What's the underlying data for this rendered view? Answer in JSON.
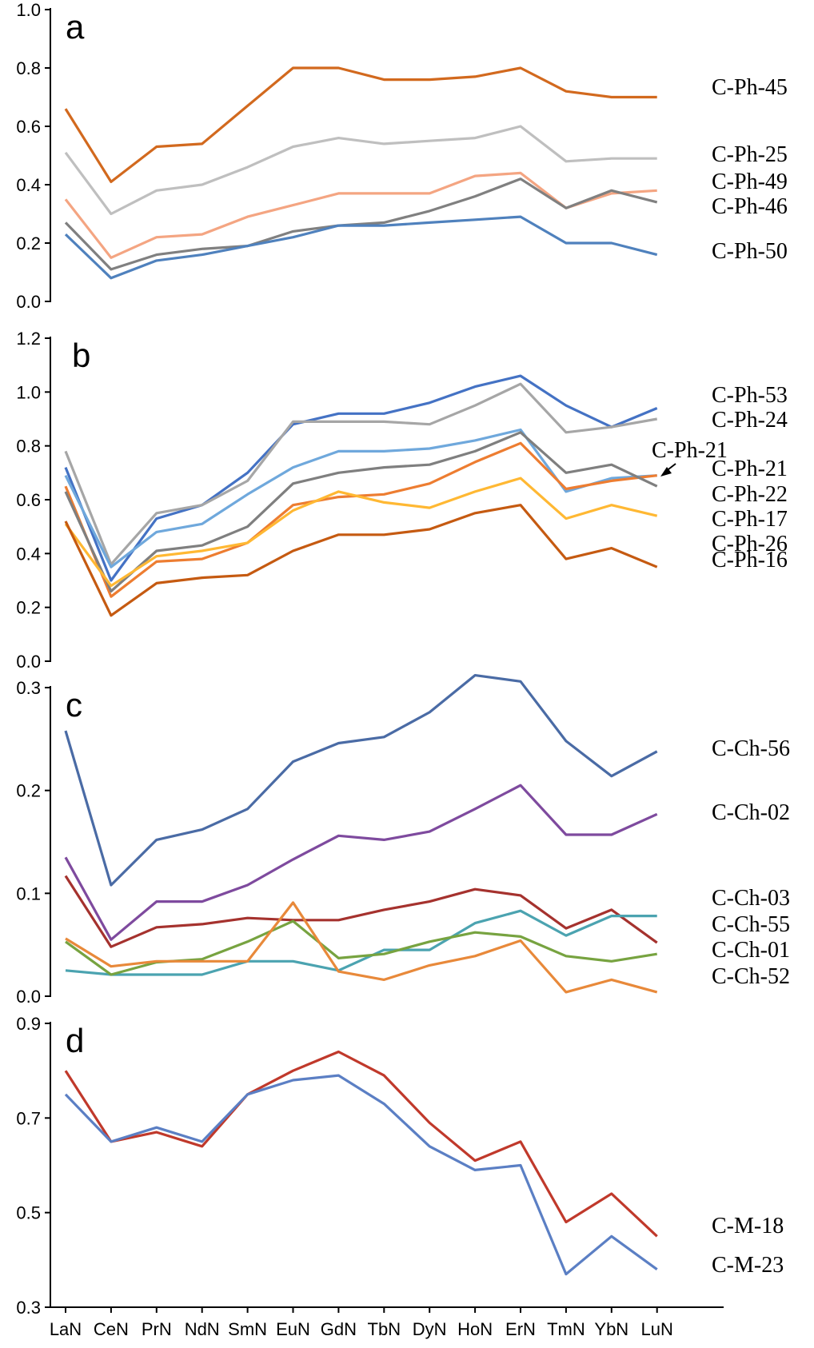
{
  "chart_data": [
    {
      "type": "line",
      "panel_label": "a",
      "categories": [
        "LaN",
        "CeN",
        "PrN",
        "NdN",
        "SmN",
        "EuN",
        "GdN",
        "TbN",
        "DyN",
        "HoN",
        "ErN",
        "TmN",
        "YbN",
        "LuN"
      ],
      "ylim": [
        0.0,
        1.0
      ],
      "yticks": [
        0.0,
        0.2,
        0.4,
        0.6,
        0.8,
        1.0
      ],
      "ytick_labels": [
        "0.0",
        "0.2",
        "0.4",
        "0.6",
        "0.8",
        "1.0"
      ],
      "series": [
        {
          "name": "C-Ph-45",
          "color": "#D2691E",
          "values": [
            0.66,
            0.41,
            0.53,
            0.54,
            0.67,
            0.8,
            0.8,
            0.76,
            0.76,
            0.77,
            0.8,
            0.72,
            0.7,
            0.7
          ]
        },
        {
          "name": "C-Ph-25",
          "color": "#BFBFBF",
          "values": [
            0.51,
            0.3,
            0.38,
            0.4,
            0.46,
            0.53,
            0.56,
            0.54,
            0.55,
            0.56,
            0.6,
            0.48,
            0.49,
            0.49
          ]
        },
        {
          "name": "C-Ph-49",
          "color": "#F4A582",
          "values": [
            0.35,
            0.15,
            0.22,
            0.23,
            0.29,
            0.33,
            0.37,
            0.37,
            0.37,
            0.43,
            0.44,
            0.32,
            0.37,
            0.38
          ]
        },
        {
          "name": "C-Ph-46",
          "color": "#808080",
          "values": [
            0.27,
            0.11,
            0.16,
            0.18,
            0.19,
            0.24,
            0.26,
            0.27,
            0.31,
            0.36,
            0.42,
            0.32,
            0.38,
            0.34
          ]
        },
        {
          "name": "C-Ph-50",
          "color": "#4F81BD",
          "values": [
            0.23,
            0.08,
            0.14,
            0.16,
            0.19,
            0.22,
            0.26,
            0.26,
            0.27,
            0.28,
            0.29,
            0.2,
            0.2,
            0.16
          ]
        }
      ]
    },
    {
      "type": "line",
      "panel_label": "b",
      "categories": [
        "LaN",
        "CeN",
        "PrN",
        "NdN",
        "SmN",
        "EuN",
        "GdN",
        "TbN",
        "DyN",
        "HoN",
        "ErN",
        "TmN",
        "YbN",
        "LuN"
      ],
      "ylim": [
        0.0,
        1.2
      ],
      "yticks": [
        0.0,
        0.2,
        0.4,
        0.6,
        0.8,
        1.0,
        1.2
      ],
      "ytick_labels": [
        "0.0",
        "0.2",
        "0.4",
        "0.6",
        "0.8",
        "1.0",
        "1.2"
      ],
      "annotation": "C-Ph-21",
      "series": [
        {
          "name": "C-Ph-53",
          "color": "#4472C4",
          "values": [
            0.72,
            0.3,
            0.53,
            0.58,
            0.7,
            0.88,
            0.92,
            0.92,
            0.96,
            1.02,
            1.06,
            0.95,
            0.87,
            0.94
          ]
        },
        {
          "name": "C-Ph-24",
          "color": "#A6A6A6",
          "values": [
            0.78,
            0.36,
            0.55,
            0.58,
            0.67,
            0.89,
            0.89,
            0.89,
            0.88,
            0.95,
            1.03,
            0.85,
            0.87,
            0.9
          ]
        },
        {
          "name": "C-Ph-21",
          "color": "#6FA8DC",
          "values": [
            0.69,
            0.35,
            0.48,
            0.51,
            0.62,
            0.72,
            0.78,
            0.78,
            0.79,
            0.82,
            0.86,
            0.63,
            0.68,
            0.69
          ]
        },
        {
          "name": "C-Ph-22",
          "color": "#ED7D31",
          "values": [
            0.65,
            0.24,
            0.37,
            0.38,
            0.44,
            0.58,
            0.61,
            0.62,
            0.66,
            0.74,
            0.81,
            0.64,
            0.67,
            0.69
          ]
        },
        {
          "name": "C-Ph-17",
          "color": "#7F7F7F",
          "values": [
            0.63,
            0.26,
            0.41,
            0.43,
            0.5,
            0.66,
            0.7,
            0.72,
            0.73,
            0.78,
            0.85,
            0.7,
            0.73,
            0.65
          ]
        },
        {
          "name": "C-Ph-26",
          "color": "#FFB833",
          "values": [
            0.51,
            0.28,
            0.39,
            0.41,
            0.44,
            0.56,
            0.63,
            0.59,
            0.57,
            0.63,
            0.68,
            0.53,
            0.58,
            0.54
          ]
        },
        {
          "name": "C-Ph-16",
          "color": "#C55A11",
          "values": [
            0.52,
            0.17,
            0.29,
            0.31,
            0.32,
            0.41,
            0.47,
            0.47,
            0.49,
            0.55,
            0.58,
            0.38,
            0.42,
            0.35
          ]
        }
      ]
    },
    {
      "type": "line",
      "panel_label": "c",
      "categories": [
        "LaN",
        "CeN",
        "PrN",
        "NdN",
        "SmN",
        "EuN",
        "GdN",
        "TbN",
        "DyN",
        "HoN",
        "ErN",
        "TmN",
        "YbN",
        "LuN"
      ],
      "ylim": [
        0.0,
        0.3
      ],
      "yticks": [
        0.0,
        0.1,
        0.2,
        0.3
      ],
      "ytick_labels": [
        "0.0",
        "0.1",
        "0.2",
        "0.3"
      ],
      "series": [
        {
          "name": "C-Ch-56",
          "color": "#4A6BA5",
          "values": [
            0.258,
            0.108,
            0.152,
            0.162,
            0.182,
            0.228,
            0.246,
            0.252,
            0.276,
            0.312,
            0.306,
            0.248,
            0.214,
            0.238
          ]
        },
        {
          "name": "C-Ch-02",
          "color": "#7E4A9E",
          "values": [
            0.135,
            0.055,
            0.092,
            0.092,
            0.108,
            0.133,
            0.156,
            0.152,
            0.16,
            0.182,
            0.205,
            0.157,
            0.157,
            0.177
          ]
        },
        {
          "name": "C-Ch-03",
          "color": "#A5322E",
          "values": [
            0.117,
            0.048,
            0.067,
            0.07,
            0.076,
            0.074,
            0.074,
            0.084,
            0.092,
            0.104,
            0.098,
            0.066,
            0.084,
            0.052
          ]
        },
        {
          "name": "C-Ch-55",
          "color": "#4BA3B0",
          "values": [
            0.025,
            0.021,
            0.021,
            0.021,
            0.034,
            0.034,
            0.025,
            0.045,
            0.045,
            0.071,
            0.083,
            0.059,
            0.078,
            0.078
          ]
        },
        {
          "name": "C-Ch-01",
          "color": "#77A340",
          "values": [
            0.053,
            0.021,
            0.033,
            0.036,
            0.053,
            0.073,
            0.037,
            0.041,
            0.053,
            0.062,
            0.058,
            0.039,
            0.034,
            0.041
          ]
        },
        {
          "name": "C-Ch-52",
          "color": "#E8893A",
          "values": [
            0.056,
            0.029,
            0.034,
            0.034,
            0.034,
            0.091,
            0.024,
            0.016,
            0.03,
            0.039,
            0.054,
            0.004,
            0.016,
            0.004
          ]
        }
      ]
    },
    {
      "type": "line",
      "panel_label": "d",
      "categories": [
        "LaN",
        "CeN",
        "PrN",
        "NdN",
        "SmN",
        "EuN",
        "GdN",
        "TbN",
        "DyN",
        "HoN",
        "ErN",
        "TmN",
        "YbN",
        "LuN"
      ],
      "ylim": [
        0.3,
        0.9
      ],
      "yticks": [
        0.3,
        0.5,
        0.7,
        0.9
      ],
      "ytick_labels": [
        "0.3",
        "0.5",
        "0.7",
        "0.9"
      ],
      "series": [
        {
          "name": "C-M-18",
          "color": "#C0392B",
          "values": [
            0.8,
            0.65,
            0.67,
            0.64,
            0.75,
            0.8,
            0.84,
            0.79,
            0.69,
            0.61,
            0.65,
            0.48,
            0.54,
            0.45
          ]
        },
        {
          "name": "C-M-23",
          "color": "#5B7FC4",
          "values": [
            0.75,
            0.65,
            0.68,
            0.65,
            0.75,
            0.78,
            0.79,
            0.73,
            0.64,
            0.59,
            0.6,
            0.37,
            0.45,
            0.38
          ]
        }
      ]
    }
  ]
}
